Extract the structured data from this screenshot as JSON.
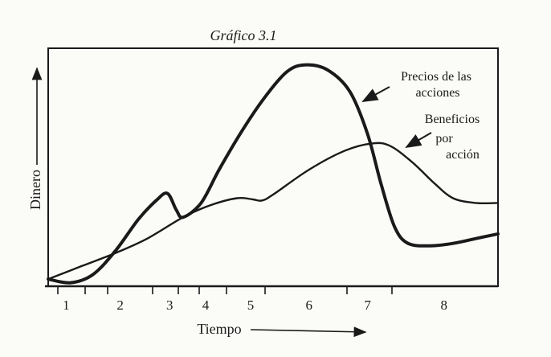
{
  "chart_data": {
    "type": "line",
    "title": "Gráfico 3.1",
    "xlabel": "Tiempo",
    "ylabel": "Dinero",
    "xlim": [
      0,
      10
    ],
    "ylim": [
      0,
      10
    ],
    "grid": false,
    "period_labels": [
      {
        "label": "1",
        "x": 0.4
      },
      {
        "label": "2",
        "x": 1.6
      },
      {
        "label": "3",
        "x": 2.7
      },
      {
        "label": "4",
        "x": 3.5
      },
      {
        "label": "5",
        "x": 4.5
      },
      {
        "label": "6",
        "x": 5.8
      },
      {
        "label": "7",
        "x": 7.1
      },
      {
        "label": "8",
        "x": 8.8
      }
    ],
    "series": [
      {
        "name": "Precios de las acciones",
        "color": "#1a1a1a",
        "style": "thick",
        "points": [
          [
            0,
            0.3
          ],
          [
            0.5,
            0.15
          ],
          [
            1,
            0.5
          ],
          [
            1.5,
            1.5
          ],
          [
            2,
            2.8
          ],
          [
            2.4,
            3.6
          ],
          [
            2.65,
            3.9
          ],
          [
            2.85,
            3.2
          ],
          [
            3.0,
            2.9
          ],
          [
            3.4,
            3.5
          ],
          [
            3.8,
            4.9
          ],
          [
            4.3,
            6.5
          ],
          [
            4.8,
            7.9
          ],
          [
            5.3,
            9.0
          ],
          [
            5.7,
            9.3
          ],
          [
            6.2,
            9.1
          ],
          [
            6.7,
            8.2
          ],
          [
            7.1,
            6.4
          ],
          [
            7.4,
            4.3
          ],
          [
            7.7,
            2.5
          ],
          [
            8.0,
            1.8
          ],
          [
            8.5,
            1.7
          ],
          [
            9.0,
            1.8
          ],
          [
            9.5,
            2.0
          ],
          [
            10,
            2.2
          ]
        ]
      },
      {
        "name": "Beneficios por acción",
        "color": "#1a1a1a",
        "style": "thin",
        "points": [
          [
            0,
            0.3
          ],
          [
            0.75,
            0.85
          ],
          [
            1.5,
            1.4
          ],
          [
            2.2,
            2.0
          ],
          [
            3.0,
            2.9
          ],
          [
            3.6,
            3.4
          ],
          [
            4.2,
            3.7
          ],
          [
            4.55,
            3.65
          ],
          [
            4.75,
            3.6
          ],
          [
            5.0,
            3.85
          ],
          [
            5.8,
            4.9
          ],
          [
            6.6,
            5.7
          ],
          [
            7.2,
            6.0
          ],
          [
            7.6,
            5.9
          ],
          [
            8.1,
            5.2
          ],
          [
            8.6,
            4.3
          ],
          [
            9.0,
            3.7
          ],
          [
            9.5,
            3.5
          ],
          [
            10,
            3.5
          ]
        ]
      }
    ],
    "annotations": [
      {
        "lines": [
          "Precios de las",
          "acciones"
        ],
        "target_series": "Precios de las acciones"
      },
      {
        "lines": [
          "Beneficios",
          "por",
          "acción"
        ],
        "target_series": "Beneficios por acción"
      }
    ]
  }
}
